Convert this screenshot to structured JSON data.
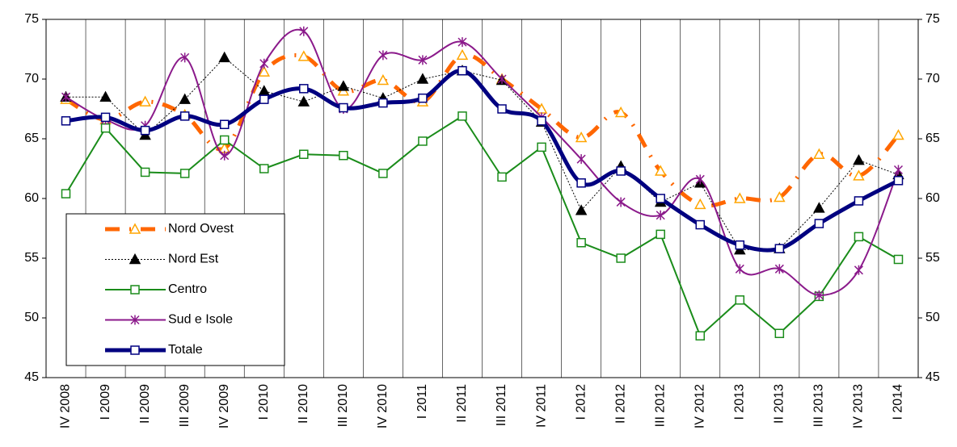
{
  "chart_data": {
    "type": "line",
    "categories": [
      "IV 2008",
      "I 2009",
      "II 2009",
      "III 2009",
      "IV 2009",
      "I 2010",
      "II 2010",
      "III 2010",
      "IV 2010",
      "I 2011",
      "II 2011",
      "III 2011",
      "IV 2011",
      "I 2012",
      "II 2012",
      "III 2012",
      "IV 2012",
      "I 2013",
      "II 2013",
      "III 2013",
      "IV 2013",
      "I 2014"
    ],
    "series": [
      {
        "name": "Nord Ovest",
        "color": "#ff6600",
        "marker_color": "#ffa500",
        "values": [
          68.3,
          66.6,
          68.1,
          67.0,
          64.2,
          70.6,
          71.9,
          69.0,
          69.9,
          68.1,
          72.0,
          70.0,
          67.5,
          65.1,
          67.2,
          62.3,
          59.5,
          60.0,
          60.1,
          63.7,
          61.9,
          65.3
        ]
      },
      {
        "name": "Nord Est",
        "color": "#000000",
        "marker_color": "#000000",
        "values": [
          68.5,
          68.5,
          65.3,
          68.3,
          71.8,
          69.0,
          68.1,
          69.4,
          68.4,
          70.0,
          70.7,
          69.9,
          66.4,
          59.0,
          62.7,
          59.7,
          61.3,
          55.7,
          55.8,
          59.2,
          63.2,
          62.0
        ]
      },
      {
        "name": "Centro",
        "color": "#1a8c1a",
        "marker_color": "#1a8c1a",
        "values": [
          60.4,
          65.9,
          62.2,
          62.1,
          64.9,
          62.5,
          63.7,
          63.6,
          62.1,
          64.8,
          66.9,
          61.8,
          64.3,
          56.3,
          55.0,
          57.0,
          48.5,
          51.5,
          48.7,
          51.8,
          56.8,
          54.9
        ]
      },
      {
        "name": "Sud e Isole",
        "color": "#8b1a8b",
        "marker_color": "#8b1a8b",
        "values": [
          68.5,
          66.6,
          66.1,
          71.8,
          63.6,
          71.3,
          74.0,
          67.5,
          72.0,
          71.6,
          73.1,
          70.0,
          66.8,
          63.3,
          59.7,
          58.6,
          61.6,
          54.1,
          54.1,
          51.9,
          54.0,
          62.4
        ]
      },
      {
        "name": "Totale",
        "color": "#000080",
        "marker_color": "#000080",
        "values": [
          66.5,
          66.8,
          65.7,
          66.9,
          66.2,
          68.3,
          69.2,
          67.6,
          68.0,
          68.4,
          70.7,
          67.5,
          66.5,
          61.3,
          62.3,
          60.0,
          57.8,
          56.1,
          55.8,
          57.9,
          59.8,
          61.5
        ]
      }
    ],
    "ylim": [
      45,
      75
    ],
    "yticks": [
      45,
      50,
      55,
      60,
      65,
      70,
      75
    ],
    "grid": true
  }
}
